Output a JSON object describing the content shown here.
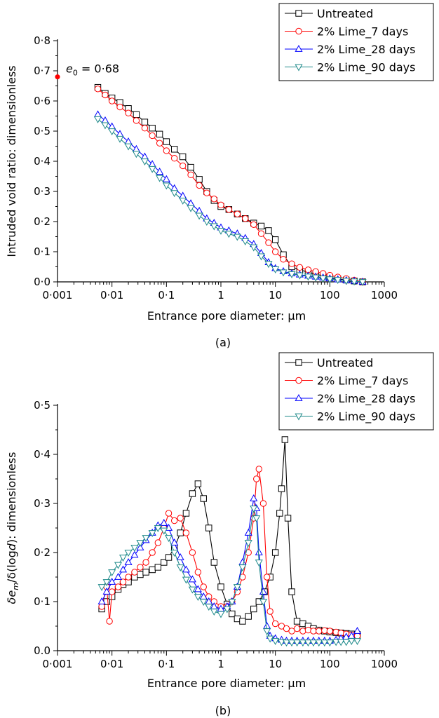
{
  "colors": {
    "Untreated": "#000000",
    "2% Lime_7 days": "#ff0000",
    "2% Lime_28 days": "#0000ff",
    "2% Lime_90 days": "#1f8a8a",
    "e0_point": "#ff0000"
  },
  "chart_data": [
    {
      "type": "line",
      "panel_label": "(a)",
      "xlabel": "Entrance pore diameter: μm",
      "ylabel": "Intruded void ratio: dimensionless",
      "xscale": "log",
      "xlim": [
        0.001,
        1000
      ],
      "ylim": [
        0,
        0.8
      ],
      "x_tick_labels": [
        "0·001",
        "0·01",
        "0·1",
        "1",
        "10",
        "100",
        "1000"
      ],
      "y_tick_labels": [
        "0·0",
        "0·1",
        "0·2",
        "0·3",
        "0·4",
        "0·5",
        "0·6",
        "0·7",
        "0·8"
      ],
      "legend_position": "top-right",
      "annotation": {
        "text_var": "e",
        "text_sub": "0",
        "text_rest": " = 0·68",
        "x": 0.001,
        "y": 0.68
      },
      "series": [
        {
          "name": "Untreated",
          "marker": "square",
          "x": [
            0.0055,
            0.0075,
            0.01,
            0.014,
            0.02,
            0.028,
            0.04,
            0.055,
            0.075,
            0.1,
            0.14,
            0.2,
            0.28,
            0.4,
            0.55,
            0.75,
            1,
            1.4,
            2,
            2.8,
            4,
            5.5,
            7.5,
            10,
            14,
            20,
            28,
            40,
            55,
            75,
            100,
            140,
            200,
            280,
            400
          ],
          "y": [
            0.645,
            0.625,
            0.61,
            0.595,
            0.575,
            0.555,
            0.53,
            0.51,
            0.49,
            0.465,
            0.44,
            0.415,
            0.38,
            0.34,
            0.3,
            0.27,
            0.25,
            0.24,
            0.225,
            0.21,
            0.195,
            0.185,
            0.17,
            0.14,
            0.09,
            0.05,
            0.04,
            0.032,
            0.026,
            0.02,
            0.015,
            0.01,
            0.006,
            0.003,
            0.0
          ]
        },
        {
          "name": "2% Lime_7 days",
          "marker": "circle",
          "x": [
            0.0055,
            0.0075,
            0.01,
            0.014,
            0.02,
            0.028,
            0.04,
            0.055,
            0.075,
            0.1,
            0.14,
            0.2,
            0.28,
            0.4,
            0.55,
            0.75,
            1,
            1.4,
            2,
            2.8,
            4,
            5.5,
            7.5,
            10,
            14,
            20,
            28,
            40,
            55,
            75,
            100,
            140,
            200,
            280,
            400
          ],
          "y": [
            0.64,
            0.62,
            0.6,
            0.58,
            0.56,
            0.535,
            0.51,
            0.485,
            0.46,
            0.435,
            0.41,
            0.385,
            0.355,
            0.32,
            0.295,
            0.275,
            0.255,
            0.24,
            0.225,
            0.21,
            0.19,
            0.16,
            0.13,
            0.1,
            0.075,
            0.06,
            0.048,
            0.04,
            0.034,
            0.028,
            0.022,
            0.016,
            0.011,
            0.006,
            0.0
          ]
        },
        {
          "name": "2% Lime_28 days",
          "marker": "triangle-up",
          "x": [
            0.0055,
            0.0075,
            0.01,
            0.014,
            0.02,
            0.028,
            0.04,
            0.055,
            0.075,
            0.1,
            0.14,
            0.2,
            0.28,
            0.4,
            0.55,
            0.75,
            1,
            1.4,
            2,
            2.8,
            4,
            5.5,
            7.5,
            10,
            14,
            20,
            28,
            40,
            55,
            75,
            100,
            140,
            200,
            280,
            400
          ],
          "y": [
            0.555,
            0.535,
            0.515,
            0.49,
            0.465,
            0.44,
            0.415,
            0.39,
            0.365,
            0.34,
            0.31,
            0.285,
            0.26,
            0.235,
            0.21,
            0.195,
            0.18,
            0.17,
            0.16,
            0.145,
            0.125,
            0.095,
            0.065,
            0.045,
            0.035,
            0.028,
            0.024,
            0.02,
            0.017,
            0.014,
            0.011,
            0.008,
            0.005,
            0.003,
            0.0
          ]
        },
        {
          "name": "2% Lime_90 days",
          "marker": "triangle-down",
          "x": [
            0.0055,
            0.0075,
            0.01,
            0.014,
            0.02,
            0.028,
            0.04,
            0.055,
            0.075,
            0.1,
            0.14,
            0.2,
            0.28,
            0.4,
            0.55,
            0.75,
            1,
            1.4,
            2,
            2.8,
            4,
            5.5,
            7.5,
            10,
            14,
            20,
            28,
            40,
            55,
            75,
            100,
            140,
            200,
            280,
            400
          ],
          "y": [
            0.54,
            0.52,
            0.5,
            0.475,
            0.45,
            0.425,
            0.4,
            0.375,
            0.345,
            0.32,
            0.295,
            0.27,
            0.245,
            0.22,
            0.2,
            0.185,
            0.17,
            0.16,
            0.15,
            0.135,
            0.115,
            0.085,
            0.06,
            0.042,
            0.032,
            0.026,
            0.022,
            0.018,
            0.015,
            0.012,
            0.009,
            0.007,
            0.004,
            0.002,
            0.0
          ]
        }
      ]
    },
    {
      "type": "line",
      "panel_label": "(b)",
      "xlabel": "Entrance pore diameter: μm",
      "ylabel_parts": [
        "δe",
        "m",
        "/δ(log",
        "d",
        "): dimensionless"
      ],
      "xscale": "log",
      "xlim": [
        0.001,
        1000
      ],
      "ylim": [
        0,
        0.5
      ],
      "x_tick_labels": [
        "0·001",
        "0·01",
        "0·1",
        "1",
        "10",
        "100",
        "1000"
      ],
      "y_tick_labels": [
        "0.0",
        "0·1",
        "0·2",
        "0·3",
        "0·4",
        "0·5"
      ],
      "legend_position": "top-right",
      "series": [
        {
          "name": "Untreated",
          "marker": "square",
          "x": [
            0.0065,
            0.008,
            0.01,
            0.013,
            0.016,
            0.02,
            0.026,
            0.033,
            0.042,
            0.055,
            0.07,
            0.09,
            0.11,
            0.14,
            0.18,
            0.23,
            0.3,
            0.38,
            0.48,
            0.6,
            0.75,
            1,
            1.3,
            1.6,
            2,
            2.5,
            3.2,
            4,
            5,
            6.3,
            8,
            10,
            12,
            13,
            15,
            17,
            20,
            25,
            32,
            40,
            50,
            63,
            80,
            100,
            130,
            160,
            200,
            250,
            320
          ],
          "y": [
            0.085,
            0.1,
            0.11,
            0.125,
            0.135,
            0.14,
            0.15,
            0.155,
            0.16,
            0.165,
            0.17,
            0.18,
            0.19,
            0.21,
            0.24,
            0.28,
            0.32,
            0.34,
            0.31,
            0.25,
            0.18,
            0.13,
            0.095,
            0.075,
            0.065,
            0.06,
            0.07,
            0.085,
            0.1,
            0.12,
            0.15,
            0.2,
            0.28,
            0.33,
            0.43,
            0.27,
            0.12,
            0.06,
            0.055,
            0.05,
            0.045,
            0.042,
            0.04,
            0.038,
            0.037,
            0.036,
            0.035,
            0.034,
            0.033
          ]
        },
        {
          "name": "2% Lime_7 days",
          "marker": "circle",
          "x": [
            0.0065,
            0.008,
            0.009,
            0.01,
            0.013,
            0.016,
            0.02,
            0.026,
            0.033,
            0.042,
            0.055,
            0.07,
            0.09,
            0.11,
            0.14,
            0.18,
            0.23,
            0.3,
            0.38,
            0.48,
            0.6,
            0.75,
            1,
            1.3,
            1.6,
            2,
            2.5,
            3.2,
            4,
            4.5,
            5,
            6,
            7,
            8,
            10,
            13,
            16,
            20,
            25,
            32,
            40,
            50,
            63,
            80,
            100,
            130,
            160,
            200,
            250,
            320
          ],
          "y": [
            0.09,
            0.13,
            0.06,
            0.12,
            0.13,
            0.14,
            0.15,
            0.16,
            0.17,
            0.18,
            0.2,
            0.22,
            0.25,
            0.28,
            0.265,
            0.27,
            0.24,
            0.2,
            0.16,
            0.13,
            0.11,
            0.1,
            0.09,
            0.09,
            0.1,
            0.12,
            0.15,
            0.2,
            0.27,
            0.35,
            0.37,
            0.3,
            0.15,
            0.08,
            0.055,
            0.05,
            0.045,
            0.04,
            0.045,
            0.04,
            0.042,
            0.04,
            0.04,
            0.041,
            0.04,
            0.038,
            0.036,
            0.034,
            0.032,
            0.03
          ]
        },
        {
          "name": "2% Lime_28 days",
          "marker": "triangle-up",
          "x": [
            0.0065,
            0.008,
            0.01,
            0.013,
            0.016,
            0.02,
            0.026,
            0.033,
            0.042,
            0.055,
            0.07,
            0.09,
            0.11,
            0.14,
            0.18,
            0.23,
            0.3,
            0.38,
            0.48,
            0.6,
            0.75,
            1,
            1.3,
            1.6,
            2,
            2.5,
            3.2,
            4,
            4.5,
            5,
            6,
            7,
            8,
            10,
            13,
            16,
            20,
            25,
            32,
            40,
            50,
            63,
            80,
            100,
            130,
            160,
            200,
            250,
            320
          ],
          "y": [
            0.1,
            0.12,
            0.14,
            0.15,
            0.165,
            0.18,
            0.195,
            0.21,
            0.225,
            0.24,
            0.255,
            0.26,
            0.25,
            0.22,
            0.19,
            0.165,
            0.145,
            0.125,
            0.11,
            0.1,
            0.09,
            0.085,
            0.09,
            0.1,
            0.13,
            0.18,
            0.24,
            0.31,
            0.29,
            0.2,
            0.12,
            0.05,
            0.03,
            0.025,
            0.022,
            0.02,
            0.02,
            0.02,
            0.02,
            0.02,
            0.02,
            0.02,
            0.02,
            0.02,
            0.022,
            0.025,
            0.028,
            0.03,
            0.04
          ]
        },
        {
          "name": "2% Lime_90 days",
          "marker": "triangle-down",
          "x": [
            0.0065,
            0.008,
            0.01,
            0.013,
            0.016,
            0.02,
            0.026,
            0.033,
            0.042,
            0.055,
            0.07,
            0.09,
            0.11,
            0.14,
            0.18,
            0.23,
            0.3,
            0.38,
            0.48,
            0.6,
            0.75,
            1,
            1.3,
            1.6,
            2,
            2.5,
            3.2,
            4,
            4.5,
            5,
            6,
            7,
            8,
            10,
            13,
            16,
            20,
            25,
            32,
            40,
            50,
            63,
            80,
            100,
            130,
            160,
            200,
            250,
            320
          ],
          "y": [
            0.13,
            0.14,
            0.16,
            0.175,
            0.19,
            0.2,
            0.21,
            0.22,
            0.23,
            0.24,
            0.25,
            0.245,
            0.23,
            0.2,
            0.17,
            0.145,
            0.125,
            0.11,
            0.1,
            0.09,
            0.08,
            0.075,
            0.085,
            0.1,
            0.13,
            0.17,
            0.22,
            0.29,
            0.27,
            0.18,
            0.1,
            0.04,
            0.025,
            0.02,
            0.018,
            0.017,
            0.017,
            0.017,
            0.017,
            0.017,
            0.017,
            0.017,
            0.017,
            0.017,
            0.018,
            0.018,
            0.018,
            0.02,
            0.02
          ]
        }
      ]
    }
  ]
}
